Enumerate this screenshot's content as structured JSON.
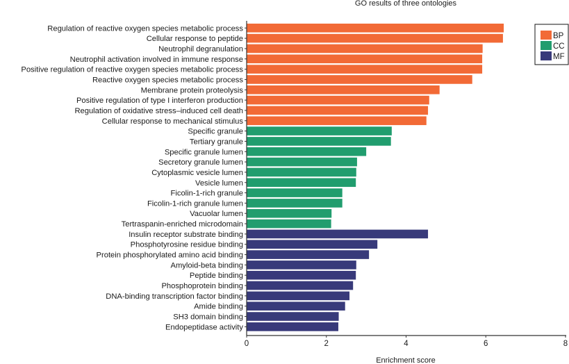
{
  "chart_data": {
    "type": "bar",
    "orientation": "horizontal",
    "title": "GO results of three ontologies",
    "xlabel": "Enrichment score",
    "ylabel": "",
    "xlim": [
      0,
      8
    ],
    "xticks": [
      0,
      2,
      4,
      6,
      8
    ],
    "grid": false,
    "legend": {
      "position": "top-right",
      "entries": [
        {
          "name": "BP",
          "color": "#f26a36"
        },
        {
          "name": "CC",
          "color": "#219d6e"
        },
        {
          "name": "MF",
          "color": "#383a7a"
        }
      ]
    },
    "categories": [
      "Regulation of reactive oxygen species metabolic process",
      "Cellular response to peptide",
      "Neutrophil degranulation",
      "Neutrophil activation involved in immune response",
      "Positive regulation of reactive oxygen species metabolic process",
      "Reactive oxygen species metabolic process",
      "Membrane protein proteolysis",
      "Positive regulation of type I interferon production",
      "Regulation of oxidative stress–induced cell death",
      "Cellular response to mechanical stimulus",
      "Specific granule",
      "Tertiary granule",
      "Specific granule lumen",
      "Secretory granule lumen",
      "Cytoplasmic vesicle lumen",
      "Vesicle lumen",
      "Ficolin-1-rich granule",
      "Ficolin-1-rich granule lumen",
      "Vacuolar lumen",
      "Tertraspanin-enriched microdomain",
      "Insulin receptor substrate binding",
      "Phosphotyrosine residue binding",
      "Protein phosphorylated amino acid binding",
      "Amyloid-beta binding",
      "Peptide binding",
      "Phosphoprotein binding",
      "DNA-binding transcription factor binding",
      "Amide binding",
      "SH3 domain binding",
      "Endopeptidase activity"
    ],
    "values": [
      6.45,
      6.43,
      5.92,
      5.91,
      5.91,
      5.66,
      4.84,
      4.58,
      4.55,
      4.51,
      3.64,
      3.62,
      3.0,
      2.77,
      2.75,
      2.74,
      2.4,
      2.4,
      2.13,
      2.12,
      4.55,
      3.28,
      3.07,
      2.75,
      2.74,
      2.67,
      2.58,
      2.47,
      2.31,
      2.3
    ],
    "groups": [
      "BP",
      "BP",
      "BP",
      "BP",
      "BP",
      "BP",
      "BP",
      "BP",
      "BP",
      "BP",
      "CC",
      "CC",
      "CC",
      "CC",
      "CC",
      "CC",
      "CC",
      "CC",
      "CC",
      "CC",
      "MF",
      "MF",
      "MF",
      "MF",
      "MF",
      "MF",
      "MF",
      "MF",
      "MF",
      "MF"
    ]
  }
}
